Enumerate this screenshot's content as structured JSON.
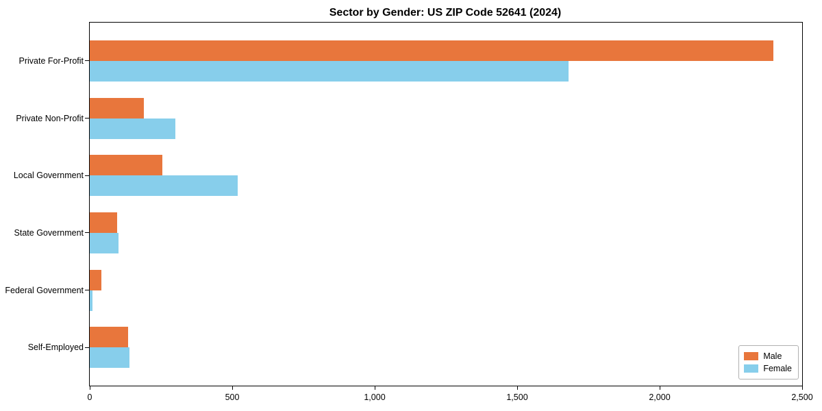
{
  "chart_data": {
    "type": "bar",
    "orientation": "horizontal",
    "title": "Sector by Gender: US ZIP Code 52641 (2024)",
    "categories": [
      "Private For-Profit",
      "Private Non-Profit",
      "Local Government",
      "State Government",
      "Federal Government",
      "Self-Employed"
    ],
    "series": [
      {
        "name": "Male",
        "color": "#e8763c",
        "values": [
          2400,
          190,
          255,
          95,
          40,
          135
        ]
      },
      {
        "name": "Female",
        "color": "#87ceeb",
        "values": [
          1680,
          300,
          520,
          100,
          10,
          140
        ]
      }
    ],
    "xlim": [
      0,
      2500
    ],
    "xticks": [
      0,
      500,
      1000,
      1500,
      2000,
      2500
    ],
    "xtick_labels": [
      "0",
      "500",
      "1,000",
      "1,500",
      "2,000",
      "2,500"
    ],
    "ylabel": "",
    "xlabel": "",
    "grid": false,
    "legend_position": "lower right"
  }
}
